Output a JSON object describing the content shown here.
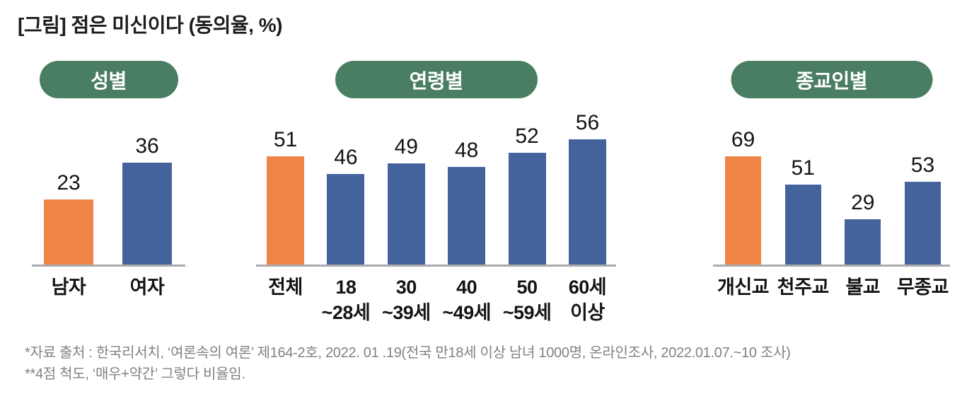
{
  "title": "[그림] 점은 미신이다 (동의율, %)",
  "colors": {
    "accent_orange": "#EE8546",
    "bar_blue": "#44639D",
    "pill_green": "#4A7E63",
    "axis_gray": "#ABABAB",
    "footnote_gray": "#828282",
    "text_dark": "#141414"
  },
  "footnotes": {
    "line1": "*자료 출처 : 한국리서치, ‘여론속의 여론’ 제164-2호, 2022. 01 .19(전국 만18세 이상 남녀 1000명, 온라인조사, 2022.01.07.~10 조사)",
    "line2": "**4점 척도, ‘매우+약간’ 그렇다 비율임."
  },
  "chart_data": [
    {
      "type": "bar",
      "title": "성별",
      "categories": [
        "남자",
        "여자"
      ],
      "values": [
        23,
        36
      ],
      "bar_colors": [
        "orange",
        "blue"
      ],
      "ylim": [
        0,
        45
      ],
      "data_labels": true,
      "grid": false,
      "legend": false
    },
    {
      "type": "bar",
      "title": "연령별",
      "categories": [
        "전체",
        "18\n~28세",
        "30\n~39세",
        "40\n~49세",
        "50\n~59세",
        "60세\n이상"
      ],
      "values": [
        51,
        46,
        49,
        48,
        52,
        56
      ],
      "bar_colors": [
        "orange",
        "blue",
        "blue",
        "blue",
        "blue",
        "blue"
      ],
      "ylim": [
        20,
        60
      ],
      "data_labels": true,
      "grid": false,
      "legend": false
    },
    {
      "type": "bar",
      "title": "종교인별",
      "categories": [
        "개신교",
        "천주교",
        "불교",
        "무종교"
      ],
      "values": [
        69,
        51,
        29,
        53
      ],
      "bar_colors": [
        "orange",
        "blue",
        "blue",
        "blue"
      ],
      "ylim": [
        0,
        80
      ],
      "data_labels": true,
      "grid": false,
      "legend": false
    }
  ]
}
